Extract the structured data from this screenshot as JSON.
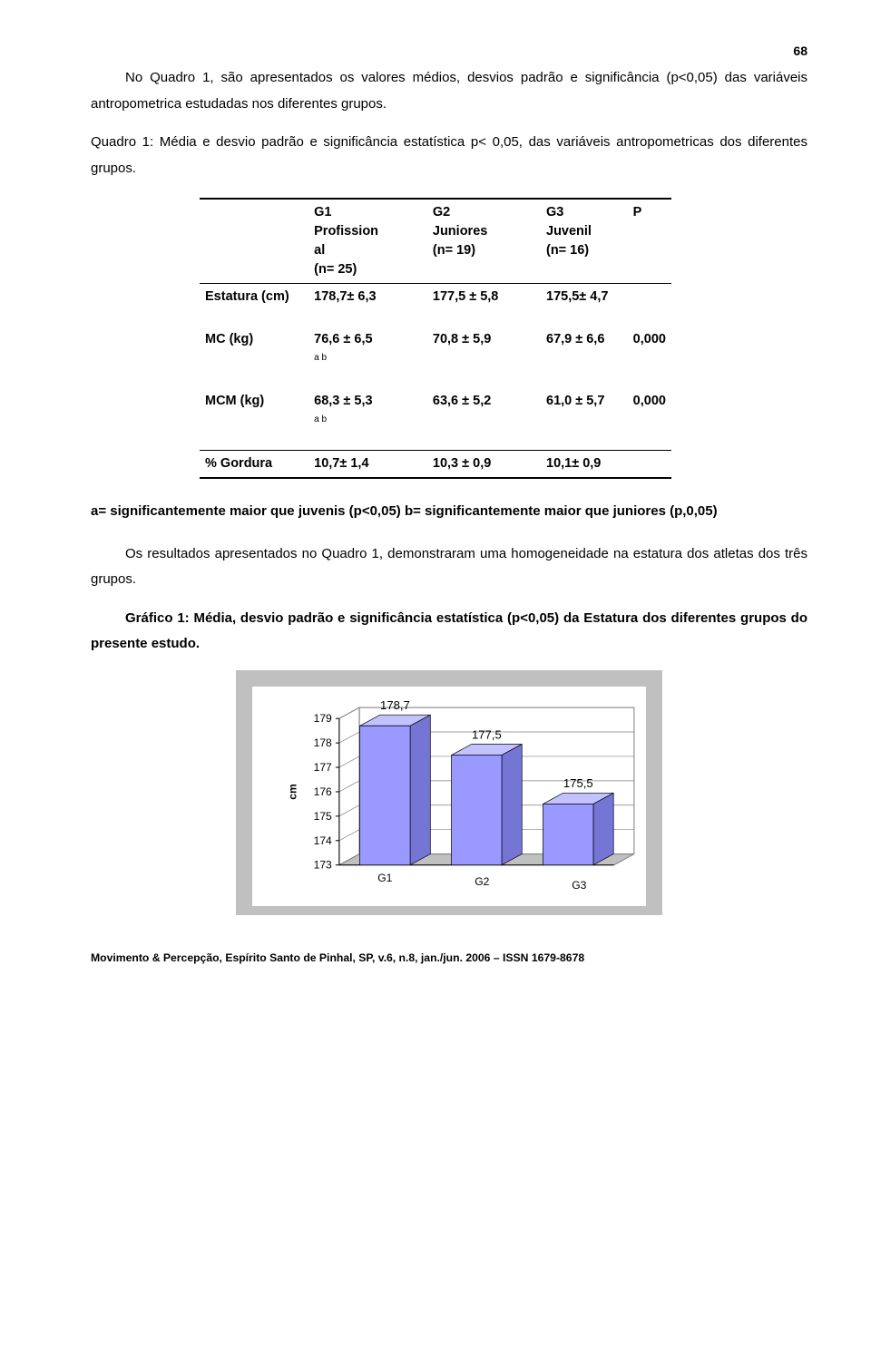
{
  "page_number": "68",
  "para1": "No Quadro 1, são apresentados os valores médios, desvios padrão e significância (p<0,05) das variáveis antropometrica estudadas nos diferentes grupos.",
  "para2": "Quadro 1: Média e desvio padrão e significância estatística p< 0,05, das variáveis antropometricas dos diferentes grupos.",
  "table": {
    "head": {
      "c1a": "G1",
      "c1b": "Profission",
      "c1c": "al",
      "c1d": "(n= 25)",
      "c2a": "G2",
      "c2b": "Juniores",
      "c2c": "(n= 19)",
      "c3a": "G3",
      "c3b": "Juvenil",
      "c3c": "(n= 16)",
      "c4a": "P"
    },
    "rows": {
      "estatura": {
        "label": "Estatura (cm)",
        "g1": "178,7± 6,3",
        "g2": "177,5 ± 5,8",
        "g3": "175,5± 4,7",
        "p": ""
      },
      "mc": {
        "label": "MC (kg)",
        "sup": "a b",
        "g1": "76,6 ± 6,5",
        "g2": "70,8 ± 5,9",
        "g3": "67,9     ± 6,6",
        "p": "0,000"
      },
      "mcm": {
        "label": "MCM (kg)",
        "sup": "a b",
        "g1": "68,3 ± 5,3",
        "g2": "63,6 ± 5,2",
        "g3": "61,0     ± 5,7",
        "p": "0,000"
      },
      "gord": {
        "label": "% Gordura",
        "g1": "10,7± 1,4",
        "g2": "10,3 ± 0,9",
        "g3": "10,1± 0,9",
        "p": ""
      }
    }
  },
  "legend": "a= significantemente maior que juvenis (p<0,05) b= significantemente maior que juniores (p,0,05)",
  "para3": "Os resultados apresentados no Quadro 1, demonstraram uma homogeneidade na estatura dos atletas dos três grupos.",
  "para4": "Gráfico 1: Média, desvio padrão e significância estatística (p<0,05) da Estatura dos diferentes grupos do presente estudo.",
  "chart": {
    "type": "bar-3d",
    "ylabel": "cm",
    "yticks": [
      "173",
      "174",
      "175",
      "176",
      "177",
      "178",
      "179"
    ],
    "ylim": [
      173,
      179
    ],
    "categories": [
      "G1",
      "G2",
      "G3"
    ],
    "values": [
      178.7,
      177.5,
      175.5
    ],
    "value_labels": [
      "178,7",
      "177,5",
      "175,5"
    ],
    "bar_fill": "#9999ff",
    "bar_side": "#7575d6",
    "bar_top": "#c2c2ff",
    "floor_fill": "#c0c0c0",
    "wall_line": "#808080",
    "frame_bg": "#c0c0c0",
    "plot_bg": "#ffffff",
    "tick_fontsize": 12,
    "label_fontsize": 12,
    "value_fontsize": 13
  },
  "footer": "Movimento & Percepção, Espírito Santo de Pinhal, SP, v.6, n.8, jan./jun. 2006 – ISSN 1679-8678"
}
